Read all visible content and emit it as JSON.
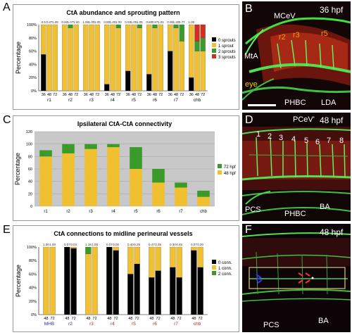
{
  "colors": {
    "black": "#000000",
    "yellow": "#f0c030",
    "green": "#3a9a2a",
    "red": "#d03020",
    "gray": "#c8c8c8",
    "blue": "#2a2aa0",
    "redlabel": "#c02020"
  },
  "panel_letters": [
    "A",
    "B",
    "C",
    "D",
    "E",
    "F"
  ],
  "chart_data": [
    {
      "type": "bar",
      "stacked": true,
      "title": "CtA abundance and sprouting pattern",
      "ylabel": "Percentage",
      "ylim": [
        0,
        100
      ],
      "yticks": [
        "0%",
        "20%",
        "40%",
        "60%",
        "80%",
        "100%"
      ],
      "groups": [
        "r1",
        "r2",
        "r3",
        "r4",
        "r5",
        "r6",
        "r7",
        "chb"
      ],
      "group_ticks": [
        "36",
        "48",
        "72"
      ],
      "top_labels": [
        "0.5",
        "0.87",
        "1.09",
        "0.90",
        "1.07",
        "1.00",
        "1.00",
        "1.00",
        "1.05",
        "0.80",
        "1.00",
        "1.00",
        "0.93",
        "1.00",
        "1.05",
        "0.80",
        "0.97",
        "1.03",
        "0.90",
        "1.20",
        "0.77",
        "1.00"
      ],
      "legend": [
        "0 sprouts",
        "1 sprout",
        "2 sprouts",
        "3 sprouts"
      ],
      "legend_position": "right",
      "series": [
        {
          "name": "0 sprouts",
          "values": [
            [
              55,
              0,
              0
            ],
            [
              0,
              0,
              0
            ],
            [
              0,
              0,
              0
            ],
            [
              10,
              0,
              0
            ],
            [
              30,
              0,
              0
            ],
            [
              25,
              0,
              0
            ],
            [
              60,
              0,
              0
            ],
            [
              20,
              0,
              0
            ]
          ]
        },
        {
          "name": "1 sprout",
          "values": [
            [
              45,
              100,
              100
            ],
            [
              100,
              95,
              100
            ],
            [
              100,
              100,
              100
            ],
            [
              90,
              100,
              95
            ],
            [
              70,
              100,
              95
            ],
            [
              75,
              95,
              100
            ],
            [
              40,
              95,
              75
            ],
            [
              80,
              60,
              60
            ]
          ]
        },
        {
          "name": "2 sprouts",
          "values": [
            [
              0,
              0,
              0
            ],
            [
              0,
              5,
              0
            ],
            [
              0,
              0,
              0
            ],
            [
              0,
              0,
              5
            ],
            [
              0,
              0,
              5
            ],
            [
              0,
              5,
              0
            ],
            [
              0,
              5,
              25
            ],
            [
              0,
              15,
              20
            ]
          ]
        },
        {
          "name": "3 sprouts",
          "values": [
            [
              0,
              0,
              0
            ],
            [
              0,
              0,
              0
            ],
            [
              0,
              0,
              0
            ],
            [
              0,
              0,
              0
            ],
            [
              0,
              0,
              0
            ],
            [
              0,
              0,
              0
            ],
            [
              0,
              0,
              0
            ],
            [
              0,
              25,
              20
            ]
          ]
        }
      ]
    },
    {
      "type": "bar",
      "stacked": true,
      "title": "Ipsilateral CtA-CtA connectivity",
      "ylabel": "Percentage",
      "ylim": [
        0,
        120
      ],
      "yticks": [
        "0",
        "20",
        "40",
        "60",
        "80",
        "100",
        "120"
      ],
      "categories": [
        "r1",
        "r2",
        "r3",
        "r4",
        "r5",
        "r6",
        "r7",
        "chb"
      ],
      "legend": [
        "72 hpf",
        "48 hpf"
      ],
      "legend_position": "right",
      "series": [
        {
          "name": "48 hpf",
          "values": [
            80,
            85,
            92,
            95,
            60,
            38,
            30,
            15
          ]
        },
        {
          "name": "72 hpf",
          "values": [
            10,
            15,
            8,
            5,
            35,
            22,
            8,
            10
          ]
        }
      ]
    },
    {
      "type": "bar",
      "stacked": true,
      "title": "CtA connections to midline perineural vessels",
      "ylabel": "Percentage",
      "ylim": [
        0,
        100
      ],
      "yticks": [
        "0%",
        "20%",
        "40%",
        "60%",
        "80%",
        "100%"
      ],
      "groups": [
        "MHB",
        "r2",
        "r3",
        "r4",
        "r5",
        "r6",
        "r7",
        "chb"
      ],
      "group_ticks": [
        "48",
        "72"
      ],
      "top_labels": [
        "1.00",
        "1.00",
        "0.07",
        "0.03",
        "1.18",
        "1.00",
        "0.07",
        "0.00",
        "0.40",
        "0.25",
        "0.47",
        "0.35",
        "0.30",
        "0.45",
        "0.07",
        "0.30"
      ],
      "legend": [
        "0 conn.",
        "1 conn.",
        "2 conn."
      ],
      "legend_position": "right",
      "series": [
        {
          "name": "0 conn.",
          "values": [
            [
              0,
              0
            ],
            [
              100,
              98
            ],
            [
              0,
              0
            ],
            [
              100,
              95
            ],
            [
              60,
              75
            ],
            [
              55,
              65
            ],
            [
              70,
              55
            ],
            [
              95,
              70
            ]
          ]
        },
        {
          "name": "1 conn.",
          "values": [
            [
              100,
              100
            ],
            [
              0,
              2
            ],
            [
              90,
              100
            ],
            [
              0,
              5
            ],
            [
              40,
              25
            ],
            [
              45,
              35
            ],
            [
              30,
              45
            ],
            [
              5,
              30
            ]
          ]
        },
        {
          "name": "2 conn.",
          "values": [
            [
              0,
              0
            ],
            [
              0,
              0
            ],
            [
              10,
              0
            ],
            [
              0,
              0
            ],
            [
              0,
              0
            ],
            [
              0,
              0
            ],
            [
              0,
              0
            ],
            [
              0,
              0
            ]
          ]
        }
      ]
    }
  ],
  "panel_b": {
    "time": "36 hpf",
    "labels": [
      "MCeV",
      "r2",
      "r3",
      "r5",
      "MtA",
      "eye",
      "PHBC",
      "LDA"
    ]
  },
  "panel_d": {
    "time": "48 hpf",
    "labels": [
      "PCeV'",
      "1",
      "2",
      "3",
      "4",
      "5",
      "6",
      "7",
      "8",
      "PCS",
      "PHBC",
      "BA"
    ]
  },
  "panel_f": {
    "time": "48 hpf",
    "labels": [
      "PCS",
      "BA"
    ]
  }
}
